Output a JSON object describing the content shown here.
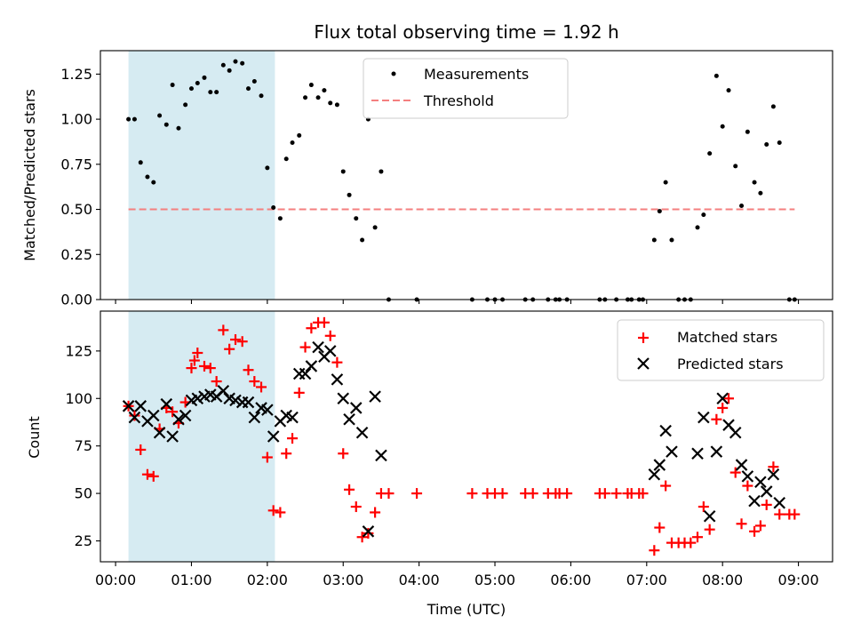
{
  "chart_data": [
    {
      "type": "scatter",
      "title": "Flux total observing time = 1.92 h",
      "ylabel": "Matched/Predicted stars",
      "xlim_hours": [
        -0.2,
        9.45
      ],
      "ylim": [
        0,
        1.38
      ],
      "yticks": [
        "0.00",
        "0.25",
        "0.50",
        "0.75",
        "1.00",
        "1.25"
      ],
      "shaded_span_hours": [
        0.17,
        2.1
      ],
      "legend": {
        "placement": "upper center",
        "entries": [
          "Measurements",
          "Threshold"
        ]
      },
      "colors": {
        "measurements": "#000000",
        "threshold": "#f47f7f",
        "shade": "#add8e6"
      },
      "threshold": {
        "value": 0.5,
        "x_from": 0.17,
        "x_to": 8.95
      },
      "series": [
        {
          "name": "Measurements",
          "points": [
            [
              0.17,
              1.0
            ],
            [
              0.25,
              1.0
            ],
            [
              0.33,
              0.76
            ],
            [
              0.42,
              0.68
            ],
            [
              0.5,
              0.65
            ],
            [
              0.58,
              1.02
            ],
            [
              0.67,
              0.97
            ],
            [
              0.75,
              1.19
            ],
            [
              0.83,
              0.95
            ],
            [
              0.92,
              1.08
            ],
            [
              1.0,
              1.17
            ],
            [
              1.08,
              1.2
            ],
            [
              1.17,
              1.23
            ],
            [
              1.25,
              1.15
            ],
            [
              1.33,
              1.15
            ],
            [
              1.42,
              1.3
            ],
            [
              1.5,
              1.27
            ],
            [
              1.58,
              1.32
            ],
            [
              1.67,
              1.31
            ],
            [
              1.75,
              1.17
            ],
            [
              1.83,
              1.21
            ],
            [
              1.92,
              1.13
            ],
            [
              2.0,
              0.73
            ],
            [
              2.08,
              0.51
            ],
            [
              2.17,
              0.45
            ],
            [
              2.25,
              0.78
            ],
            [
              2.33,
              0.87
            ],
            [
              2.42,
              0.91
            ],
            [
              2.5,
              1.12
            ],
            [
              2.58,
              1.19
            ],
            [
              2.67,
              1.12
            ],
            [
              2.75,
              1.16
            ],
            [
              2.83,
              1.09
            ],
            [
              2.92,
              1.08
            ],
            [
              3.0,
              0.71
            ],
            [
              3.08,
              0.58
            ],
            [
              3.17,
              0.45
            ],
            [
              3.25,
              0.33
            ],
            [
              3.33,
              1.0
            ],
            [
              3.42,
              0.4
            ],
            [
              3.5,
              0.71
            ],
            [
              3.6,
              0.0
            ],
            [
              3.97,
              0.0
            ],
            [
              4.7,
              0.0
            ],
            [
              4.9,
              0.0
            ],
            [
              5.0,
              0.0
            ],
            [
              5.1,
              0.0
            ],
            [
              5.4,
              0.0
            ],
            [
              5.5,
              0.0
            ],
            [
              5.7,
              0.0
            ],
            [
              5.8,
              0.0
            ],
            [
              5.85,
              0.0
            ],
            [
              5.95,
              0.0
            ],
            [
              6.38,
              0.0
            ],
            [
              6.45,
              0.0
            ],
            [
              6.6,
              0.0
            ],
            [
              6.75,
              0.0
            ],
            [
              6.8,
              0.0
            ],
            [
              6.9,
              0.0
            ],
            [
              6.95,
              0.0
            ],
            [
              7.1,
              0.33
            ],
            [
              7.17,
              0.49
            ],
            [
              7.25,
              0.65
            ],
            [
              7.33,
              0.33
            ],
            [
              7.42,
              0.0
            ],
            [
              7.5,
              0.0
            ],
            [
              7.58,
              0.0
            ],
            [
              7.67,
              0.4
            ],
            [
              7.75,
              0.47
            ],
            [
              7.83,
              0.81
            ],
            [
              7.92,
              1.24
            ],
            [
              8.0,
              0.96
            ],
            [
              8.08,
              1.16
            ],
            [
              8.17,
              0.74
            ],
            [
              8.25,
              0.52
            ],
            [
              8.33,
              0.93
            ],
            [
              8.42,
              0.65
            ],
            [
              8.5,
              0.59
            ],
            [
              8.58,
              0.86
            ],
            [
              8.67,
              1.07
            ],
            [
              8.75,
              0.87
            ],
            [
              8.88,
              0.0
            ],
            [
              8.95,
              0.0
            ]
          ]
        }
      ]
    },
    {
      "type": "scatter",
      "xlabel": "Time (UTC)",
      "ylabel": "Count",
      "xlim_hours": [
        -0.2,
        9.45
      ],
      "ylim": [
        14,
        146
      ],
      "yticks": [
        "25",
        "50",
        "75",
        "100",
        "125"
      ],
      "xtick_labels": [
        "00:00",
        "01:00",
        "02:00",
        "03:00",
        "04:00",
        "05:00",
        "06:00",
        "07:00",
        "08:00",
        "09:00"
      ],
      "shaded_span_hours": [
        0.17,
        2.1
      ],
      "legend": {
        "placement": "upper right",
        "entries": [
          "Matched stars",
          "Predicted stars"
        ]
      },
      "colors": {
        "matched": "#ff0000",
        "predicted": "#000000",
        "shade": "#add8e6"
      },
      "series": [
        {
          "name": "Matched stars",
          "points": [
            [
              0.17,
              96
            ],
            [
              0.25,
              91
            ],
            [
              0.33,
              73
            ],
            [
              0.42,
              60
            ],
            [
              0.5,
              59
            ],
            [
              0.58,
              84
            ],
            [
              0.67,
              95
            ],
            [
              0.75,
              93
            ],
            [
              0.83,
              87
            ],
            [
              0.92,
              98
            ],
            [
              1.0,
              116
            ],
            [
              1.04,
              120
            ],
            [
              1.08,
              124
            ],
            [
              1.17,
              117
            ],
            [
              1.25,
              116
            ],
            [
              1.33,
              109
            ],
            [
              1.42,
              136
            ],
            [
              1.5,
              126
            ],
            [
              1.58,
              131
            ],
            [
              1.67,
              130
            ],
            [
              1.75,
              115
            ],
            [
              1.83,
              109
            ],
            [
              1.92,
              106
            ],
            [
              2.0,
              69
            ],
            [
              2.08,
              41
            ],
            [
              2.17,
              40
            ],
            [
              2.25,
              71
            ],
            [
              2.33,
              79
            ],
            [
              2.42,
              103
            ],
            [
              2.5,
              127
            ],
            [
              2.58,
              137
            ],
            [
              2.67,
              140
            ],
            [
              2.75,
              140
            ],
            [
              2.83,
              133
            ],
            [
              2.92,
              119
            ],
            [
              3.0,
              71
            ],
            [
              3.08,
              52
            ],
            [
              3.17,
              43
            ],
            [
              3.25,
              27
            ],
            [
              3.33,
              29
            ],
            [
              3.42,
              40
            ],
            [
              3.5,
              50
            ],
            [
              3.6,
              50
            ],
            [
              3.97,
              50
            ],
            [
              4.7,
              50
            ],
            [
              4.9,
              50
            ],
            [
              5.0,
              50
            ],
            [
              5.1,
              50
            ],
            [
              5.4,
              50
            ],
            [
              5.5,
              50
            ],
            [
              5.7,
              50
            ],
            [
              5.8,
              50
            ],
            [
              5.85,
              50
            ],
            [
              5.95,
              50
            ],
            [
              6.38,
              50
            ],
            [
              6.45,
              50
            ],
            [
              6.6,
              50
            ],
            [
              6.75,
              50
            ],
            [
              6.8,
              50
            ],
            [
              6.9,
              50
            ],
            [
              6.95,
              50
            ],
            [
              7.1,
              20
            ],
            [
              7.17,
              32
            ],
            [
              7.25,
              54
            ],
            [
              7.33,
              24
            ],
            [
              7.42,
              24
            ],
            [
              7.5,
              24
            ],
            [
              7.58,
              24
            ],
            [
              7.67,
              27
            ],
            [
              7.75,
              43
            ],
            [
              7.83,
              31
            ],
            [
              7.92,
              89
            ],
            [
              8.0,
              95
            ],
            [
              8.08,
              100
            ],
            [
              8.17,
              61
            ],
            [
              8.25,
              34
            ],
            [
              8.33,
              54
            ],
            [
              8.42,
              30
            ],
            [
              8.5,
              33
            ],
            [
              8.58,
              44
            ],
            [
              8.67,
              64
            ],
            [
              8.75,
              39
            ],
            [
              8.88,
              39
            ],
            [
              8.95,
              39
            ]
          ]
        },
        {
          "name": "Predicted stars",
          "points": [
            [
              0.17,
              96
            ],
            [
              0.25,
              90
            ],
            [
              0.33,
              96
            ],
            [
              0.42,
              88
            ],
            [
              0.5,
              91
            ],
            [
              0.58,
              82
            ],
            [
              0.67,
              97
            ],
            [
              0.75,
              80
            ],
            [
              0.83,
              89
            ],
            [
              0.92,
              91
            ],
            [
              1.0,
              99
            ],
            [
              1.08,
              100
            ],
            [
              1.17,
              101
            ],
            [
              1.25,
              102
            ],
            [
              1.33,
              101
            ],
            [
              1.42,
              104
            ],
            [
              1.5,
              100
            ],
            [
              1.58,
              99
            ],
            [
              1.67,
              98
            ],
            [
              1.75,
              98
            ],
            [
              1.83,
              90
            ],
            [
              1.92,
              95
            ],
            [
              2.0,
              94
            ],
            [
              2.08,
              80
            ],
            [
              2.17,
              88
            ],
            [
              2.25,
              91
            ],
            [
              2.33,
              90
            ],
            [
              2.42,
              113
            ],
            [
              2.5,
              113
            ],
            [
              2.58,
              117
            ],
            [
              2.67,
              127
            ],
            [
              2.75,
              122
            ],
            [
              2.83,
              125
            ],
            [
              2.92,
              110
            ],
            [
              3.0,
              100
            ],
            [
              3.08,
              89
            ],
            [
              3.17,
              95
            ],
            [
              3.25,
              82
            ],
            [
              3.33,
              30
            ],
            [
              3.42,
              101
            ],
            [
              3.5,
              70
            ],
            [
              7.1,
              60
            ],
            [
              7.17,
              65
            ],
            [
              7.25,
              83
            ],
            [
              7.33,
              72
            ],
            [
              7.67,
              71
            ],
            [
              7.75,
              90
            ],
            [
              7.83,
              38
            ],
            [
              7.92,
              72
            ],
            [
              8.0,
              100
            ],
            [
              8.08,
              86
            ],
            [
              8.17,
              82
            ],
            [
              8.25,
              65
            ],
            [
              8.33,
              59
            ],
            [
              8.42,
              46
            ],
            [
              8.5,
              56
            ],
            [
              8.58,
              51
            ],
            [
              8.67,
              60
            ],
            [
              8.75,
              45
            ]
          ]
        }
      ]
    }
  ]
}
